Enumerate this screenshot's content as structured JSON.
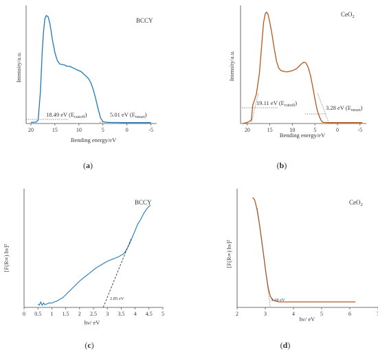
{
  "colors": {
    "bccy": "#1f77b4",
    "ceo2": "#b5561e",
    "axis": "#444444"
  },
  "chart_data": [
    {
      "id": "a",
      "type": "line",
      "panel_label": "a",
      "sample": "BCCY",
      "xlabel": "Bending energy/eV",
      "ylabel": "Intensity/a.u.",
      "xlim": [
        21,
        -6.2
      ],
      "ylim": [
        0,
        1.05
      ],
      "xticks": [
        "20",
        "15",
        "10",
        "5",
        "0",
        "-5"
      ],
      "series": [
        {
          "x": [
            20,
            19,
            18.9,
            18.49,
            18.0,
            17.7,
            17.4,
            17.1,
            16.8,
            16.4,
            16.0,
            15.5,
            15.0,
            14.5,
            14.0,
            13.5,
            13.0,
            12.5,
            12.0,
            11.5,
            11.0,
            10.5,
            10.0,
            9.5,
            9.0,
            8.5,
            8.0,
            7.5,
            7.0,
            6.5,
            6.0,
            5.5,
            5.01,
            4.5,
            4.0,
            3.0,
            2.0,
            1.0,
            0,
            -1,
            -3,
            -5
          ],
          "y": [
            0.01,
            0.012,
            0.013,
            0.03,
            0.3,
            0.6,
            0.8,
            0.93,
            0.96,
            0.95,
            0.88,
            0.74,
            0.63,
            0.56,
            0.53,
            0.525,
            0.52,
            0.51,
            0.51,
            0.5,
            0.49,
            0.48,
            0.47,
            0.46,
            0.44,
            0.42,
            0.4,
            0.36,
            0.3,
            0.22,
            0.13,
            0.05,
            0.018,
            0.012,
            0.01,
            0.009,
            0.009,
            0.008,
            0.008,
            0.008,
            0.008,
            0.008
          ]
        }
      ],
      "annotations": [
        {
          "main": "18.49 eV (E",
          "sub": "cutoff",
          "end": ")"
        },
        {
          "main": "5.01 eV (E",
          "sub": "onset",
          "end": ")"
        }
      ]
    },
    {
      "id": "b",
      "type": "line",
      "panel_label": "b",
      "sample_main": "CeO",
      "sample_sub": "2",
      "xlabel": "Bending energy/eV",
      "ylabel": "Intensity/a.u.",
      "xlim": [
        21.5,
        -6.4
      ],
      "ylim": [
        0,
        1.05
      ],
      "xticks": [
        "20",
        "15",
        "10",
        "5",
        "0",
        "-5"
      ],
      "series": [
        {
          "x": [
            21,
            20,
            19.5,
            19.11,
            18.8,
            18.0,
            17.3,
            16.8,
            16.4,
            16.0,
            15.7,
            15.4,
            15.0,
            14.5,
            14.0,
            13.5,
            13.0,
            12.5,
            12.0,
            11.5,
            11.0,
            10.5,
            10.0,
            9.5,
            9.0,
            8.5,
            8.0,
            7.5,
            7.0,
            6.5,
            6.0,
            5.5,
            5.0,
            4.5,
            4.0,
            3.6,
            3.28,
            3.0,
            2.0,
            1.0,
            0,
            -2,
            -4,
            -5.5
          ],
          "y": [
            0.0,
            0.01,
            0.02,
            0.03,
            0.16,
            0.26,
            0.45,
            0.7,
            0.9,
            0.98,
            0.99,
            0.97,
            0.9,
            0.79,
            0.66,
            0.55,
            0.49,
            0.47,
            0.465,
            0.46,
            0.46,
            0.465,
            0.47,
            0.48,
            0.49,
            0.51,
            0.53,
            0.545,
            0.54,
            0.5,
            0.43,
            0.33,
            0.22,
            0.12,
            0.06,
            0.025,
            0.012,
            0.01,
            0.008,
            0.008,
            0.008,
            0.008,
            0.008,
            0.008
          ]
        }
      ],
      "annotations": [
        {
          "main": "19.11 eV (E",
          "sub": "cutoff",
          "end": ")"
        },
        {
          "main": "3.28 eV (E",
          "sub": "onset",
          "end": ")"
        }
      ]
    },
    {
      "id": "c",
      "type": "line",
      "panel_label": "c",
      "sample": "BCCY",
      "xlabel": "hν/ eV",
      "ylabel": "[F(R∞) hν]²",
      "xlim": [
        0,
        5
      ],
      "ylim": [
        0,
        1.08
      ],
      "xticks": [
        "0",
        "0.5",
        "1",
        "1.5",
        "2",
        "2.5",
        "3",
        "3.5",
        "4",
        "4.5",
        "5"
      ],
      "series": [
        {
          "x": [
            0.5,
            0.55,
            0.6,
            0.65,
            0.7,
            0.75,
            0.8,
            0.9,
            1.0,
            1.2,
            1.4,
            1.6,
            1.8,
            2.0,
            2.2,
            2.4,
            2.6,
            2.8,
            3.0,
            3.2,
            3.4,
            3.6,
            3.7,
            3.8,
            3.9,
            4.0,
            4.1,
            4.2,
            4.3,
            4.4,
            4.5,
            4.55
          ],
          "y": [
            0.03,
            0.02,
            0.05,
            0.02,
            0.04,
            0.025,
            0.03,
            0.04,
            0.04,
            0.06,
            0.09,
            0.14,
            0.19,
            0.24,
            0.28,
            0.32,
            0.36,
            0.39,
            0.42,
            0.44,
            0.46,
            0.49,
            0.53,
            0.58,
            0.64,
            0.7,
            0.76,
            0.8,
            0.85,
            0.89,
            0.92,
            0.93
          ]
        }
      ],
      "fit": {
        "x": [
          2.85,
          3.85
        ],
        "y": [
          0.0,
          0.62
        ]
      },
      "annotations": [
        {
          "main": "2.85 eV"
        }
      ]
    },
    {
      "id": "d",
      "type": "line",
      "panel_label": "d",
      "sample_main": "CeO",
      "sample_sub": "2",
      "xlabel": "hν/ eV",
      "ylabel": "[F(R∞) hν]²",
      "xlim": [
        2,
        7
      ],
      "ylim": [
        0,
        1.08
      ],
      "xticks": [
        "2",
        "3",
        "4",
        "5",
        "6",
        "7"
      ],
      "series": [
        {
          "x": [
            2.55,
            2.62,
            2.7,
            2.78,
            2.86,
            2.94,
            3.02,
            3.1,
            3.18,
            3.26,
            3.34,
            3.42,
            3.5,
            3.7,
            4.0,
            4.5,
            5.0,
            5.5,
            6.0,
            6.2
          ],
          "y": [
            1.0,
            0.98,
            0.9,
            0.78,
            0.63,
            0.48,
            0.32,
            0.18,
            0.1,
            0.07,
            0.06,
            0.055,
            0.05,
            0.05,
            0.05,
            0.05,
            0.05,
            0.05,
            0.05,
            0.05
          ]
        }
      ],
      "fit": {
        "x": [
          2.72,
          3.18
        ],
        "y": [
          0.9,
          0.0
        ]
      },
      "annotations": [
        {
          "main": "3.18 eV"
        }
      ]
    }
  ]
}
